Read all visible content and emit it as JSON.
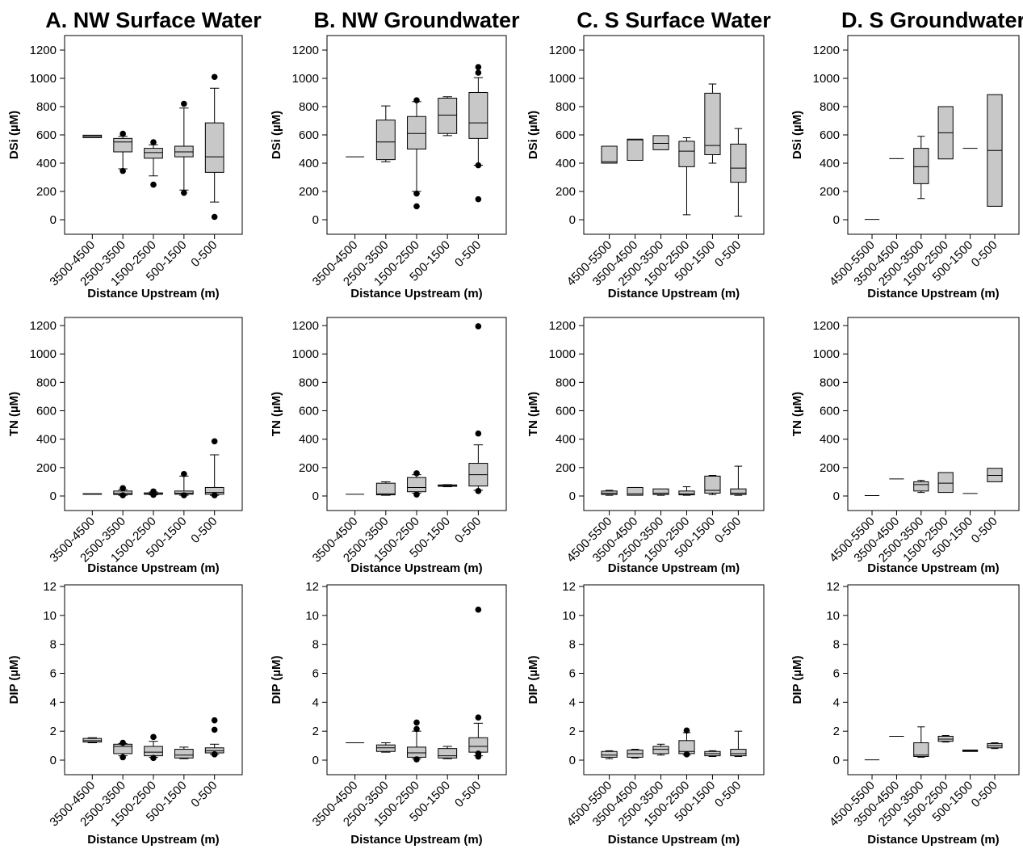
{
  "figure": {
    "ylabels": [
      "DSi (µM)",
      "TN (µM)",
      "DIP (µM)"
    ],
    "xlabel": "Distance Upstream (m)",
    "box_fill": "#c8c8c8"
  },
  "chart_data": [
    {
      "type": "box",
      "panel": "A. NW Surface Water - DSi",
      "title": "A. NW Surface Water",
      "ylabel": "DSi (µM)",
      "xlabel": "Distance Upstream (m)",
      "ylim": [
        0,
        1200
      ],
      "yticks": [
        0,
        200,
        400,
        600,
        800,
        1000,
        1200
      ],
      "categories": [
        "3500-4500",
        "2500-3500",
        "1500-2500",
        "500-1500",
        "0-500"
      ],
      "boxes": [
        {
          "whisker_low": 580,
          "q1": 580,
          "median": 590,
          "q3": 598,
          "whisker_high": 598,
          "outliers": []
        },
        {
          "whisker_low": 360,
          "q1": 480,
          "median": 550,
          "q3": 575,
          "whisker_high": 590,
          "outliers": [
            345,
            608
          ]
        },
        {
          "whisker_low": 310,
          "q1": 435,
          "median": 475,
          "q3": 505,
          "whisker_high": 530,
          "outliers": [
            248,
            548
          ]
        },
        {
          "whisker_low": 210,
          "q1": 445,
          "median": 480,
          "q3": 520,
          "whisker_high": 790,
          "outliers": [
            190,
            820
          ]
        },
        {
          "whisker_low": 125,
          "q1": 335,
          "median": 445,
          "q3": 685,
          "whisker_high": 930,
          "outliers": [
            20,
            1010
          ]
        }
      ]
    },
    {
      "type": "box",
      "panel": "B. NW Groundwater - DSi",
      "title": "B. NW Groundwater",
      "ylabel": "DSi (µM)",
      "xlabel": "Distance Upstream (m)",
      "ylim": [
        0,
        1200
      ],
      "yticks": [
        0,
        200,
        400,
        600,
        800,
        1000,
        1200
      ],
      "categories": [
        "3500-4500",
        "2500-3500",
        "1500-2500",
        "500-1500",
        "0-500"
      ],
      "boxes": [
        {
          "whisker_low": 445,
          "q1": 445,
          "median": 445,
          "q3": 445,
          "whisker_high": 445,
          "outliers": []
        },
        {
          "whisker_low": 410,
          "q1": 425,
          "median": 550,
          "q3": 705,
          "whisker_high": 805,
          "outliers": []
        },
        {
          "whisker_low": 200,
          "q1": 500,
          "median": 610,
          "q3": 730,
          "whisker_high": 835,
          "outliers": [
            95,
            185,
            845
          ]
        },
        {
          "whisker_low": 595,
          "q1": 610,
          "median": 740,
          "q3": 860,
          "whisker_high": 870,
          "outliers": []
        },
        {
          "whisker_low": 385,
          "q1": 575,
          "median": 685,
          "q3": 900,
          "whisker_high": 1005,
          "outliers": [
            145,
            385,
            1040,
            1080
          ]
        }
      ]
    },
    {
      "type": "box",
      "panel": "C. S Surface Water - DSi",
      "title": "C. S Surface Water",
      "ylabel": "DSi (µM)",
      "xlabel": "Distance Upstream (m)",
      "ylim": [
        0,
        1200
      ],
      "yticks": [
        0,
        200,
        400,
        600,
        800,
        1000,
        1200
      ],
      "categories": [
        "4500-5500",
        "3500-4500",
        "2500-3500",
        "1500-2500",
        "500-1500",
        "0-500"
      ],
      "boxes": [
        {
          "whisker_low": 400,
          "q1": 400,
          "median": 410,
          "q3": 520,
          "whisker_high": 520,
          "outliers": []
        },
        {
          "whisker_low": 420,
          "q1": 420,
          "median": 565,
          "q3": 570,
          "whisker_high": 570,
          "outliers": []
        },
        {
          "whisker_low": 495,
          "q1": 495,
          "median": 540,
          "q3": 595,
          "whisker_high": 595,
          "outliers": []
        },
        {
          "whisker_low": 35,
          "q1": 375,
          "median": 485,
          "q3": 555,
          "whisker_high": 580,
          "outliers": []
        },
        {
          "whisker_low": 400,
          "q1": 460,
          "median": 525,
          "q3": 895,
          "whisker_high": 960,
          "outliers": []
        },
        {
          "whisker_low": 25,
          "q1": 265,
          "median": 365,
          "q3": 535,
          "whisker_high": 645,
          "outliers": []
        }
      ]
    },
    {
      "type": "box",
      "panel": "D. S Groundwater - DSi",
      "title": "D. S Groundwater",
      "ylabel": "DSi (µM)",
      "xlabel": "Distance Upstream (m)",
      "ylim": [
        0,
        1200
      ],
      "yticks": [
        0,
        200,
        400,
        600,
        800,
        1000,
        1200
      ],
      "categories": [
        "4500-5500",
        "3500-4500",
        "2500-3500",
        "1500-2500",
        "500-1500",
        "0-500"
      ],
      "boxes": [
        {
          "whisker_low": 2,
          "q1": 2,
          "median": 2,
          "q3": 2,
          "whisker_high": 2,
          "outliers": []
        },
        {
          "whisker_low": 432,
          "q1": 432,
          "median": 432,
          "q3": 432,
          "whisker_high": 432,
          "outliers": []
        },
        {
          "whisker_low": 150,
          "q1": 255,
          "median": 375,
          "q3": 505,
          "whisker_high": 590,
          "outliers": []
        },
        {
          "whisker_low": 430,
          "q1": 430,
          "median": 615,
          "q3": 800,
          "whisker_high": 800,
          "outliers": []
        },
        {
          "whisker_low": 505,
          "q1": 505,
          "median": 505,
          "q3": 505,
          "whisker_high": 505,
          "outliers": []
        },
        {
          "whisker_low": 95,
          "q1": 95,
          "median": 490,
          "q3": 885,
          "whisker_high": 885,
          "outliers": []
        }
      ]
    },
    {
      "type": "box",
      "panel": "A. NW Surface Water - TN",
      "ylabel": "TN (µM)",
      "xlabel": "Distance Upstream (m)",
      "ylim": [
        0,
        1200
      ],
      "yticks": [
        0,
        200,
        400,
        600,
        800,
        1000,
        1200
      ],
      "categories": [
        "3500-4500",
        "2500-3500",
        "1500-2500",
        "500-1500",
        "0-500"
      ],
      "boxes": [
        {
          "whisker_low": 12,
          "q1": 12,
          "median": 14,
          "q3": 16,
          "whisker_high": 16,
          "outliers": []
        },
        {
          "whisker_low": 5,
          "q1": 10,
          "median": 18,
          "q3": 35,
          "whisker_high": 45,
          "outliers": [
            5,
            55
          ]
        },
        {
          "whisker_low": 8,
          "q1": 12,
          "median": 15,
          "q3": 22,
          "whisker_high": 28,
          "outliers": [
            8,
            32
          ]
        },
        {
          "whisker_low": 5,
          "q1": 12,
          "median": 20,
          "q3": 35,
          "whisker_high": 140,
          "outliers": [
            5,
            155
          ]
        },
        {
          "whisker_low": 5,
          "q1": 12,
          "median": 25,
          "q3": 60,
          "whisker_high": 290,
          "outliers": [
            5,
            385
          ]
        }
      ]
    },
    {
      "type": "box",
      "panel": "B. NW Groundwater - TN",
      "ylabel": "TN (µM)",
      "xlabel": "Distance Upstream (m)",
      "ylim": [
        0,
        1200
      ],
      "yticks": [
        0,
        200,
        400,
        600,
        800,
        1000,
        1200
      ],
      "categories": [
        "3500-4500",
        "2500-3500",
        "1500-2500",
        "500-1500",
        "0-500"
      ],
      "boxes": [
        {
          "whisker_low": 12,
          "q1": 12,
          "median": 12,
          "q3": 12,
          "whisker_high": 12,
          "outliers": []
        },
        {
          "whisker_low": 5,
          "q1": 8,
          "median": 15,
          "q3": 90,
          "whisker_high": 100,
          "outliers": []
        },
        {
          "whisker_low": 20,
          "q1": 30,
          "median": 60,
          "q3": 130,
          "whisker_high": 150,
          "outliers": [
            10,
            160
          ]
        },
        {
          "whisker_low": 65,
          "q1": 68,
          "median": 75,
          "q3": 78,
          "whisker_high": 80,
          "outliers": []
        },
        {
          "whisker_low": 40,
          "q1": 70,
          "median": 150,
          "q3": 230,
          "whisker_high": 360,
          "outliers": [
            35,
            440,
            1195
          ]
        }
      ]
    },
    {
      "type": "box",
      "panel": "C. S Surface Water - TN",
      "ylabel": "TN (µM)",
      "xlabel": "Distance Upstream (m)",
      "ylim": [
        0,
        1200
      ],
      "yticks": [
        0,
        200,
        400,
        600,
        800,
        1000,
        1200
      ],
      "categories": [
        "4500-5500",
        "3500-4500",
        "2500-3500",
        "1500-2500",
        "500-1500",
        "0-500"
      ],
      "boxes": [
        {
          "whisker_low": 5,
          "q1": 10,
          "median": 20,
          "q3": 35,
          "whisker_high": 40,
          "outliers": []
        },
        {
          "whisker_low": 5,
          "q1": 5,
          "median": 15,
          "q3": 60,
          "whisker_high": 60,
          "outliers": []
        },
        {
          "whisker_low": 5,
          "q1": 10,
          "median": 20,
          "q3": 50,
          "whisker_high": 50,
          "outliers": []
        },
        {
          "whisker_low": 5,
          "q1": 8,
          "median": 15,
          "q3": 35,
          "whisker_high": 65,
          "outliers": []
        },
        {
          "whisker_low": 10,
          "q1": 20,
          "median": 40,
          "q3": 140,
          "whisker_high": 145,
          "outliers": []
        },
        {
          "whisker_low": 5,
          "q1": 10,
          "median": 20,
          "q3": 50,
          "whisker_high": 210,
          "outliers": []
        }
      ]
    },
    {
      "type": "box",
      "panel": "D. S Groundwater - TN",
      "ylabel": "TN (µM)",
      "xlabel": "Distance Upstream (m)",
      "ylim": [
        0,
        1200
      ],
      "yticks": [
        0,
        200,
        400,
        600,
        800,
        1000,
        1200
      ],
      "categories": [
        "4500-5500",
        "3500-4500",
        "2500-3500",
        "1500-2500",
        "500-1500",
        "0-500"
      ],
      "boxes": [
        {
          "whisker_low": 3,
          "q1": 3,
          "median": 3,
          "q3": 3,
          "whisker_high": 3,
          "outliers": []
        },
        {
          "whisker_low": 120,
          "q1": 120,
          "median": 120,
          "q3": 120,
          "whisker_high": 120,
          "outliers": []
        },
        {
          "whisker_low": 25,
          "q1": 35,
          "median": 80,
          "q3": 100,
          "whisker_high": 110,
          "outliers": []
        },
        {
          "whisker_low": 25,
          "q1": 25,
          "median": 90,
          "q3": 165,
          "whisker_high": 165,
          "outliers": []
        },
        {
          "whisker_low": 18,
          "q1": 18,
          "median": 18,
          "q3": 18,
          "whisker_high": 18,
          "outliers": []
        },
        {
          "whisker_low": 100,
          "q1": 100,
          "median": 145,
          "q3": 195,
          "whisker_high": 195,
          "outliers": []
        }
      ]
    },
    {
      "type": "box",
      "panel": "A. NW Surface Water - DIP",
      "ylabel": "DIP (µM)",
      "xlabel": "Distance Upstream (m)",
      "ylim": [
        0,
        12
      ],
      "yticks": [
        0,
        2,
        4,
        6,
        8,
        10,
        12
      ],
      "categories": [
        "3500-4500",
        "2500-3500",
        "1500-2500",
        "500-1500",
        "0-500"
      ],
      "boxes": [
        {
          "whisker_low": 1.2,
          "q1": 1.25,
          "median": 1.35,
          "q3": 1.5,
          "whisker_high": 1.55,
          "outliers": []
        },
        {
          "whisker_low": 0.3,
          "q1": 0.45,
          "median": 0.95,
          "q3": 1.1,
          "whisker_high": 1.15,
          "outliers": [
            0.2,
            1.2
          ]
        },
        {
          "whisker_low": 0.2,
          "q1": 0.3,
          "median": 0.55,
          "q3": 0.95,
          "whisker_high": 1.3,
          "outliers": [
            0.15,
            1.6
          ]
        },
        {
          "whisker_low": 0.1,
          "q1": 0.15,
          "median": 0.35,
          "q3": 0.75,
          "whisker_high": 0.9,
          "outliers": []
        },
        {
          "whisker_low": 0.4,
          "q1": 0.5,
          "median": 0.65,
          "q3": 0.85,
          "whisker_high": 1.1,
          "outliers": [
            0.4,
            2.1,
            2.75
          ]
        }
      ]
    },
    {
      "type": "box",
      "panel": "B. NW Groundwater - DIP",
      "ylabel": "DIP (µM)",
      "xlabel": "Distance Upstream (m)",
      "ylim": [
        0,
        12
      ],
      "yticks": [
        0,
        2,
        4,
        6,
        8,
        10,
        12
      ],
      "categories": [
        "3500-4500",
        "2500-3500",
        "1500-2500",
        "500-1500",
        "0-500"
      ],
      "boxes": [
        {
          "whisker_low": 1.2,
          "q1": 1.2,
          "median": 1.2,
          "q3": 1.2,
          "whisker_high": 1.2,
          "outliers": []
        },
        {
          "whisker_low": 0.55,
          "q1": 0.6,
          "median": 0.85,
          "q3": 1.05,
          "whisker_high": 1.2,
          "outliers": []
        },
        {
          "whisker_low": 0.1,
          "q1": 0.2,
          "median": 0.5,
          "q3": 0.9,
          "whisker_high": 2.0,
          "outliers": [
            0.05,
            2.15,
            2.6
          ]
        },
        {
          "whisker_low": 0.1,
          "q1": 0.15,
          "median": 0.3,
          "q3": 0.8,
          "whisker_high": 0.95,
          "outliers": []
        },
        {
          "whisker_low": 0.3,
          "q1": 0.55,
          "median": 0.95,
          "q3": 1.55,
          "whisker_high": 2.55,
          "outliers": [
            0.25,
            0.45,
            2.95,
            10.4
          ]
        }
      ]
    },
    {
      "type": "box",
      "panel": "C. S Surface Water - DIP",
      "ylabel": "DIP (µM)",
      "xlabel": "Distance Upstream (m)",
      "ylim": [
        0,
        12
      ],
      "yticks": [
        0,
        2,
        4,
        6,
        8,
        10,
        12
      ],
      "categories": [
        "4500-5500",
        "3500-4500",
        "2500-3500",
        "1500-2500",
        "500-1500",
        "0-500"
      ],
      "boxes": [
        {
          "whisker_low": 0.1,
          "q1": 0.2,
          "median": 0.35,
          "q3": 0.6,
          "whisker_high": 0.65,
          "outliers": []
        },
        {
          "whisker_low": 0.15,
          "q1": 0.2,
          "median": 0.45,
          "q3": 0.7,
          "whisker_high": 0.75,
          "outliers": []
        },
        {
          "whisker_low": 0.35,
          "q1": 0.45,
          "median": 0.75,
          "q3": 0.95,
          "whisker_high": 1.1,
          "outliers": []
        },
        {
          "whisker_low": 0.35,
          "q1": 0.45,
          "median": 0.6,
          "q3": 1.35,
          "whisker_high": 1.9,
          "outliers": [
            0.4,
            2.05
          ]
        },
        {
          "whisker_low": 0.25,
          "q1": 0.3,
          "median": 0.45,
          "q3": 0.6,
          "whisker_high": 0.65,
          "outliers": []
        },
        {
          "whisker_low": 0.25,
          "q1": 0.3,
          "median": 0.45,
          "q3": 0.75,
          "whisker_high": 2.0,
          "outliers": []
        }
      ]
    },
    {
      "type": "box",
      "panel": "D. S Groundwater - DIP",
      "ylabel": "DIP (µM)",
      "xlabel": "Distance Upstream (m)",
      "ylim": [
        0,
        12
      ],
      "yticks": [
        0,
        2,
        4,
        6,
        8,
        10,
        12
      ],
      "categories": [
        "4500-5500",
        "3500-4500",
        "2500-3500",
        "1500-2500",
        "500-1500",
        "0-500"
      ],
      "boxes": [
        {
          "whisker_low": 0.02,
          "q1": 0.02,
          "median": 0.02,
          "q3": 0.02,
          "whisker_high": 0.02,
          "outliers": []
        },
        {
          "whisker_low": 1.65,
          "q1": 1.65,
          "median": 1.65,
          "q3": 1.65,
          "whisker_high": 1.65,
          "outliers": []
        },
        {
          "whisker_low": 0.2,
          "q1": 0.25,
          "median": 0.35,
          "q3": 1.2,
          "whisker_high": 2.3,
          "outliers": []
        },
        {
          "whisker_low": 1.25,
          "q1": 1.3,
          "median": 1.45,
          "q3": 1.65,
          "whisker_high": 1.7,
          "outliers": []
        },
        {
          "whisker_low": 0.6,
          "q1": 0.6,
          "median": 0.65,
          "q3": 0.7,
          "whisker_high": 0.7,
          "outliers": []
        },
        {
          "whisker_low": 0.8,
          "q1": 0.85,
          "median": 1.0,
          "q3": 1.15,
          "whisker_high": 1.2,
          "outliers": []
        }
      ]
    }
  ]
}
